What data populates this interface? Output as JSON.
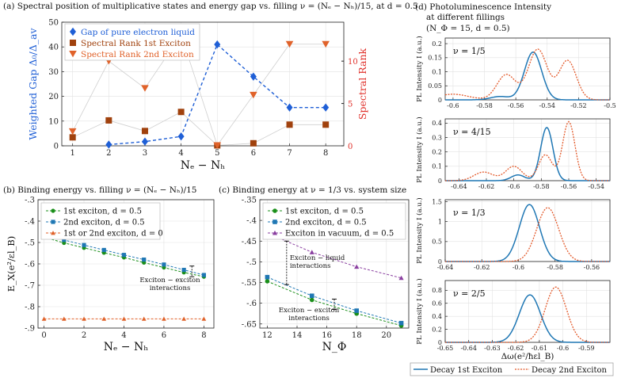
{
  "titles": {
    "a": "(a) Spectral position of multiplicative states and energy gap vs. filling ν = (Nₑ − Nₕ)/15,  at d = 0.5",
    "b": "(b) Binding energy vs. filling ν = (Nₑ − Nₕ)/15",
    "c": "(c) Binding energy at ν = 1/3 vs. system size",
    "d1": "(d) Photoluminescence Intensity",
    "d2": "at different fillings",
    "d3": "(N_Φ = 15, d = 0.5)"
  },
  "colors": {
    "blue": "#1f5fd6",
    "brown": "#a0410d",
    "orange": "#e0622a",
    "green": "#1a8f1a",
    "purple": "#8a3fa0",
    "red": "#e0302a",
    "pl_blue": "#1f77b4",
    "pl_orange": "#e35a2b"
  },
  "chart_data": [
    {
      "id": "a",
      "type": "scatter",
      "xlabel": "Nₑ − Nₕ",
      "ylabel": "Weighted Gap Δ₀/Δ_av",
      "y2label": "Spectral Rank",
      "xlim": [
        0.7,
        8.5
      ],
      "ylim": [
        0,
        50
      ],
      "y2lim": [
        0,
        14.6
      ],
      "xticks": [
        1,
        2,
        3,
        4,
        5,
        6,
        7,
        8
      ],
      "yticks": [
        0,
        10,
        20,
        30,
        40,
        50
      ],
      "y2ticks": [
        0,
        5,
        10
      ],
      "legend_position": "top-left",
      "series": [
        {
          "name": "Gap of pure electron liquid",
          "marker": "diamond",
          "color": "#1f5fd6",
          "axis": "left",
          "dashed": true,
          "x": [
            2,
            3,
            4,
            5,
            6,
            7,
            8
          ],
          "y": [
            0.5,
            1.7,
            3.8,
            41,
            28,
            15.5,
            15.5
          ]
        },
        {
          "name": "Spectral Rank 1st Exciton",
          "marker": "square",
          "color": "#a0410d",
          "axis": "right",
          "dashed": false,
          "x": [
            1,
            2,
            3,
            4,
            5,
            6,
            7,
            8
          ],
          "y": [
            1,
            3,
            1.75,
            4,
            0.05,
            0.3,
            2.5,
            2.5
          ]
        },
        {
          "name": "Spectral Rank 2nd Exciton",
          "marker": "triangle-down",
          "color": "#e0622a",
          "axis": "right",
          "dashed": false,
          "x": [
            1,
            2,
            3,
            4,
            5,
            6,
            7,
            8
          ],
          "y": [
            1.7,
            10,
            6.8,
            13.1,
            0.05,
            6,
            12,
            12
          ]
        }
      ]
    },
    {
      "id": "b",
      "type": "line",
      "xlabel": "Nₑ − Nₕ",
      "ylabel": "E_X(e²/εl_B)",
      "xlim": [
        -0.3,
        8.5
      ],
      "ylim": [
        -0.9,
        -0.3
      ],
      "xticks": [
        0,
        2,
        4,
        6,
        8
      ],
      "yticks": [
        -0.3,
        -0.4,
        -0.5,
        -0.6,
        -0.7,
        -0.8,
        -0.9
      ],
      "legend_position": "top-left",
      "annotation": "Exciton − exciton interactions",
      "series": [
        {
          "name": "1st exciton, d = 0.5",
          "marker": "circle",
          "color": "#1a8f1a",
          "x": [
            0,
            1,
            2,
            3,
            4,
            5,
            6,
            7,
            8
          ],
          "y": [
            -0.475,
            -0.502,
            -0.525,
            -0.548,
            -0.57,
            -0.594,
            -0.617,
            -0.64,
            -0.66
          ]
        },
        {
          "name": "2nd exciton, d = 0.5",
          "marker": "square",
          "color": "#1f77b4",
          "x": [
            0,
            1,
            2,
            3,
            4,
            5,
            6,
            7,
            8
          ],
          "y": [
            -0.462,
            -0.488,
            -0.512,
            -0.535,
            -0.558,
            -0.58,
            -0.603,
            -0.628,
            -0.652
          ]
        },
        {
          "name": "1st or 2nd exciton, d = 0",
          "marker": "triangle",
          "color": "#e0622a",
          "x": [
            0,
            1,
            2,
            3,
            4,
            5,
            6,
            7,
            8
          ],
          "y": [
            -0.857,
            -0.857,
            -0.857,
            -0.857,
            -0.857,
            -0.857,
            -0.857,
            -0.857,
            -0.857
          ]
        }
      ]
    },
    {
      "id": "c",
      "type": "line",
      "xlabel": "N_Φ",
      "ylabel": "",
      "xlim": [
        11.5,
        21.5
      ],
      "ylim": [
        -0.66,
        -0.35
      ],
      "xticks": [
        12,
        14,
        16,
        18,
        20
      ],
      "yticks": [
        -0.35,
        -0.4,
        -0.45,
        -0.5,
        -0.55,
        -0.6,
        -0.65
      ],
      "legend_position": "top-left",
      "annotations": [
        "Exciton − liquid interactions",
        "Exciton − exciton interactions"
      ],
      "series": [
        {
          "name": "1st exciton, d = 0.5",
          "marker": "circle",
          "color": "#1a8f1a",
          "x": [
            12,
            15,
            18,
            21
          ],
          "y": [
            -0.547,
            -0.592,
            -0.625,
            -0.654
          ]
        },
        {
          "name": "2nd exciton, d = 0.5",
          "marker": "square",
          "color": "#1f77b4",
          "x": [
            12,
            15,
            18,
            21
          ],
          "y": [
            -0.537,
            -0.582,
            -0.618,
            -0.648
          ]
        },
        {
          "name": "Exciton in vacuum, d = 0.5",
          "marker": "triangle",
          "color": "#8a3fa0",
          "x": [
            12,
            15,
            18,
            21
          ],
          "y": [
            -0.43,
            -0.477,
            -0.512,
            -0.539
          ]
        }
      ]
    },
    {
      "id": "d",
      "type": "line",
      "xlabel": "Δω(e²/ħεl_B)",
      "ylabel": "PL Intensity I (a.u.)",
      "legend": [
        "Decay 1st Exciton",
        "Decay 2nd Exciton"
      ],
      "legend_position": "bottom",
      "panels": [
        {
          "label": "ν = 1/5",
          "xlim": [
            -0.605,
            -0.5
          ],
          "ylim": [
            0,
            0.22
          ],
          "xticks": [
            -0.6,
            -0.58,
            -0.56,
            -0.54,
            -0.52,
            -0.5
          ],
          "yticks": [
            0,
            0.05,
            0.1,
            0.15,
            0.2
          ],
          "series": [
            {
              "name": "Decay 1st Exciton",
              "peaks": [
                [
                  -0.549,
                  0.17,
                  0.0055
                ],
                [
                  -0.57,
                  0.012,
                  0.006
                ]
              ]
            },
            {
              "name": "Decay 2nd Exciton",
              "peaks": [
                [
                  -0.566,
                  0.09,
                  0.006
                ],
                [
                  -0.546,
                  0.18,
                  0.006
                ],
                [
                  -0.527,
                  0.14,
                  0.0055
                ],
                [
                  -0.6,
                  0.02,
                  0.01
                ]
              ]
            }
          ]
        },
        {
          "label": "ν = 4/15",
          "xlim": [
            -0.65,
            -0.53
          ],
          "ylim": [
            0,
            0.43
          ],
          "xticks": [
            -0.64,
            -0.62,
            -0.6,
            -0.58,
            -0.56,
            -0.54
          ],
          "yticks": [
            0,
            0.1,
            0.2,
            0.3,
            0.4
          ],
          "series": [
            {
              "name": "Decay 1st Exciton",
              "peaks": [
                [
                  -0.576,
                  0.37,
                  0.0045
                ],
                [
                  -0.597,
                  0.04,
                  0.005
                ]
              ]
            },
            {
              "name": "Decay 2nd Exciton",
              "peaks": [
                [
                  -0.56,
                  0.41,
                  0.0045
                ],
                [
                  -0.577,
                  0.18,
                  0.005
                ],
                [
                  -0.6,
                  0.1,
                  0.006
                ],
                [
                  -0.622,
                  0.06,
                  0.007
                ]
              ]
            }
          ]
        },
        {
          "label": "ν = 1/3",
          "xlim": [
            -0.64,
            -0.55
          ],
          "ylim": [
            0,
            1.55
          ],
          "xticks": [
            -0.64,
            -0.62,
            -0.6,
            -0.58,
            -0.56
          ],
          "yticks": [
            0,
            0.5,
            1,
            1.5
          ],
          "series": [
            {
              "name": "Decay 1st Exciton",
              "peaks": [
                [
                  -0.594,
                  1.43,
                  0.0055
                ]
              ]
            },
            {
              "name": "Decay 2nd Exciton",
              "peaks": [
                [
                  -0.584,
                  1.35,
                  0.006
                ]
              ]
            }
          ]
        },
        {
          "label": "ν = 2/5",
          "xlim": [
            -0.65,
            -0.58
          ],
          "ylim": [
            0,
            0.95
          ],
          "xticks": [
            -0.65,
            -0.64,
            -0.63,
            -0.62,
            -0.61,
            -0.6,
            -0.59
          ],
          "yticks": [
            0,
            0.2,
            0.4,
            0.6,
            0.8
          ],
          "series": [
            {
              "name": "Decay 1st Exciton",
              "peaks": [
                [
                  -0.614,
                  0.73,
                  0.0045
                ]
              ]
            },
            {
              "name": "Decay 2nd Exciton",
              "peaks": [
                [
                  -0.603,
                  0.85,
                  0.0045
                ]
              ]
            }
          ]
        }
      ]
    }
  ]
}
